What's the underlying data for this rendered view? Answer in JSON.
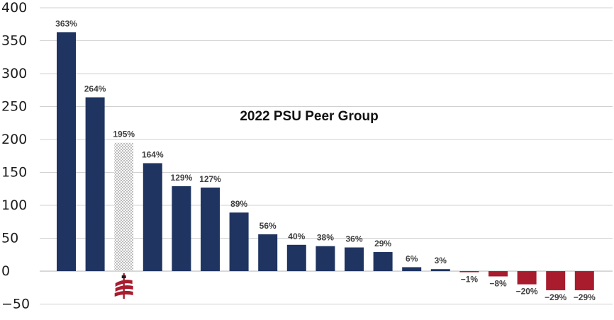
{
  "chart_data": {
    "type": "bar",
    "title": "2022 PSU Peer Group",
    "xlabel": "",
    "ylabel": "",
    "ylim": [
      -50,
      400
    ],
    "yticks": [
      400,
      350,
      300,
      250,
      200,
      150,
      100,
      50,
      0,
      -50
    ],
    "grid": true,
    "legend": "none",
    "values": [
      363,
      264,
      195,
      164,
      129,
      127,
      89,
      56,
      40,
      38,
      36,
      29,
      6,
      3,
      -1,
      -8,
      -20,
      -29,
      -29
    ],
    "labels": [
      "363%",
      "264%",
      "195%",
      "164%",
      "129%",
      "127%",
      "89%",
      "56%",
      "40%",
      "38%",
      "36%",
      "29%",
      "6%",
      "3%",
      "-1%",
      "-8%",
      "-20%",
      "-29%",
      "-29%"
    ],
    "highlight_index": 2,
    "highlight_icon": "company-logo-icon",
    "colors": {
      "positive": "#1f3460",
      "negative": "#a81c2e",
      "highlight_pattern": "#9a9a9a",
      "logo": "#a81c2e"
    }
  }
}
